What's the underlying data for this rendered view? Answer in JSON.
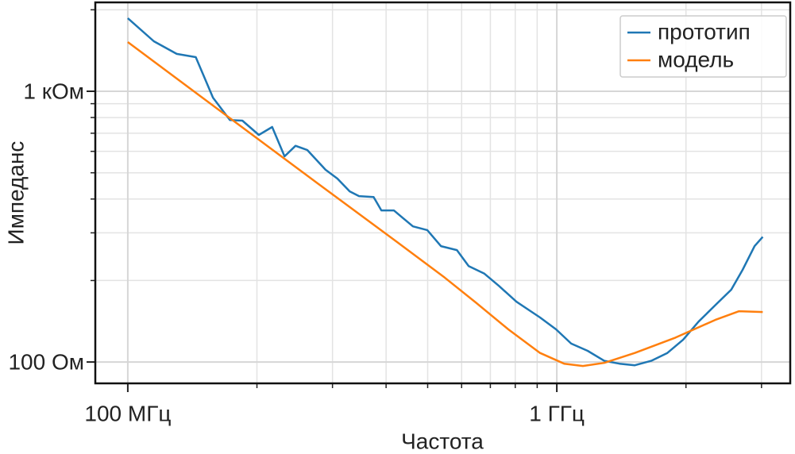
{
  "chart_data": {
    "type": "line",
    "x_label": "Частота",
    "y_label": "Импеданс",
    "log_x": true,
    "log_y": true,
    "grid": true,
    "legend": "upper right",
    "xlim": [
      84000000,
      3500000000
    ],
    "ylim": [
      83.4,
      2130
    ],
    "xticks": [
      {
        "value": 100000000,
        "label": "100 МГц"
      },
      {
        "value": 1000000000,
        "label": "1 ГГц"
      }
    ],
    "yticks": [
      {
        "value": 100,
        "label": "100 Ом"
      },
      {
        "value": 1000,
        "label": "1 кОм"
      }
    ],
    "xminorticks": [
      200000000,
      300000000,
      400000000,
      500000000,
      600000000,
      700000000,
      800000000,
      900000000,
      2000000000,
      3000000000
    ],
    "yminorticks": [
      200,
      300,
      400,
      500,
      600,
      700,
      800,
      900,
      2000
    ],
    "series": [
      {
        "name": "прототип",
        "color": "#1f77b4",
        "x": [
          100000000,
          115000000,
          130000000,
          144000000,
          158000000,
          173000000,
          185000000,
          202000000,
          217000000,
          232000000,
          246000000,
          262000000,
          289000000,
          308000000,
          329000000,
          346000000,
          374000000,
          390000000,
          417000000,
          462000000,
          499000000,
          537000000,
          585000000,
          623000000,
          678000000,
          733000000,
          805000000,
          914000000,
          996000000,
          1080000000,
          1180000000,
          1290000000,
          1400000000,
          1520000000,
          1660000000,
          1810000000,
          1970000000,
          2140000000,
          2340000000,
          2550000000,
          2710000000,
          2890000000,
          3020000000
        ],
        "values": [
          1862,
          1530,
          1374,
          1337,
          947,
          783,
          779,
          690,
          738,
          575,
          629,
          607,
          513,
          476,
          427,
          410,
          407,
          363,
          363,
          317,
          307,
          268,
          259,
          226,
          212,
          191,
          167,
          146,
          132,
          117,
          110,
          101,
          98.6,
          97.3,
          101,
          108,
          121,
          141,
          162,
          185,
          219,
          268,
          290
        ]
      },
      {
        "name": "модель",
        "color": "#ff7f0e",
        "x": [
          100000000,
          181000000,
          277000000,
          425000000,
          548000000,
          650000000,
          771000000,
          914000000,
          1040000000,
          1150000000,
          1290000000,
          1520000000,
          1890000000,
          2340000000,
          2660000000,
          3020000000
        ],
        "values": [
          1520,
          754,
          457,
          277,
          205,
          165,
          132,
          108,
          98.6,
          96.7,
          99.3,
          108,
          123,
          143,
          154,
          153
        ]
      }
    ]
  }
}
